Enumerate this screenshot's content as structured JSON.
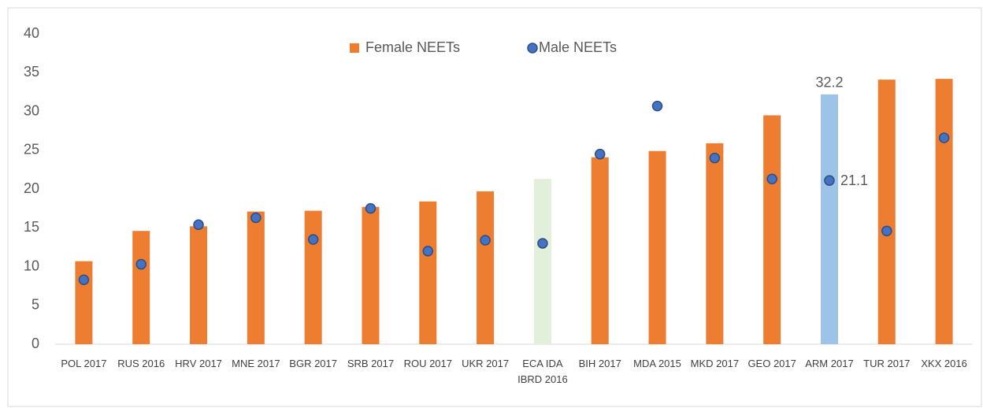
{
  "chart_data": {
    "type": "bar",
    "categories": [
      "POL 2017",
      "RUS 2016",
      "HRV 2017",
      "MNE 2017",
      "BGR 2017",
      "SRB 2017",
      "ROU 2017",
      "UKR 2017",
      "ECA IDA IBRD 2016",
      "BIH 2017",
      "MDA 2015",
      "MKD 2017",
      "GEO 2017",
      "ARM 2017",
      "TUR 2017",
      "XKX 2016"
    ],
    "series": [
      {
        "name": "Female NEETs",
        "type": "bar",
        "color": "#ed7d31",
        "colors": [
          "#ed7d31",
          "#ed7d31",
          "#ed7d31",
          "#ed7d31",
          "#ed7d31",
          "#ed7d31",
          "#ed7d31",
          "#ed7d31",
          "#e2efda",
          "#ed7d31",
          "#ed7d31",
          "#ed7d31",
          "#ed7d31",
          "#9dc3e6",
          "#ed7d31",
          "#ed7d31"
        ],
        "values": [
          10.7,
          14.6,
          15.2,
          17.1,
          17.2,
          17.7,
          18.4,
          19.7,
          21.3,
          24.1,
          24.9,
          25.9,
          29.5,
          32.2,
          34.1,
          34.2
        ],
        "label_indices": [
          13
        ]
      },
      {
        "name": "Male NEETs",
        "type": "dot",
        "color": "#4472c4",
        "values": [
          8.3,
          10.3,
          15.4,
          16.3,
          13.5,
          17.5,
          12.0,
          13.4,
          13.0,
          24.5,
          30.7,
          24.0,
          21.3,
          21.1,
          14.6,
          26.6
        ],
        "label_indices": [
          13
        ]
      }
    ],
    "ylim": [
      0,
      40
    ],
    "yticks": [
      0,
      5,
      10,
      15,
      20,
      25,
      30,
      35,
      40
    ],
    "grid": false,
    "legend": "top"
  }
}
